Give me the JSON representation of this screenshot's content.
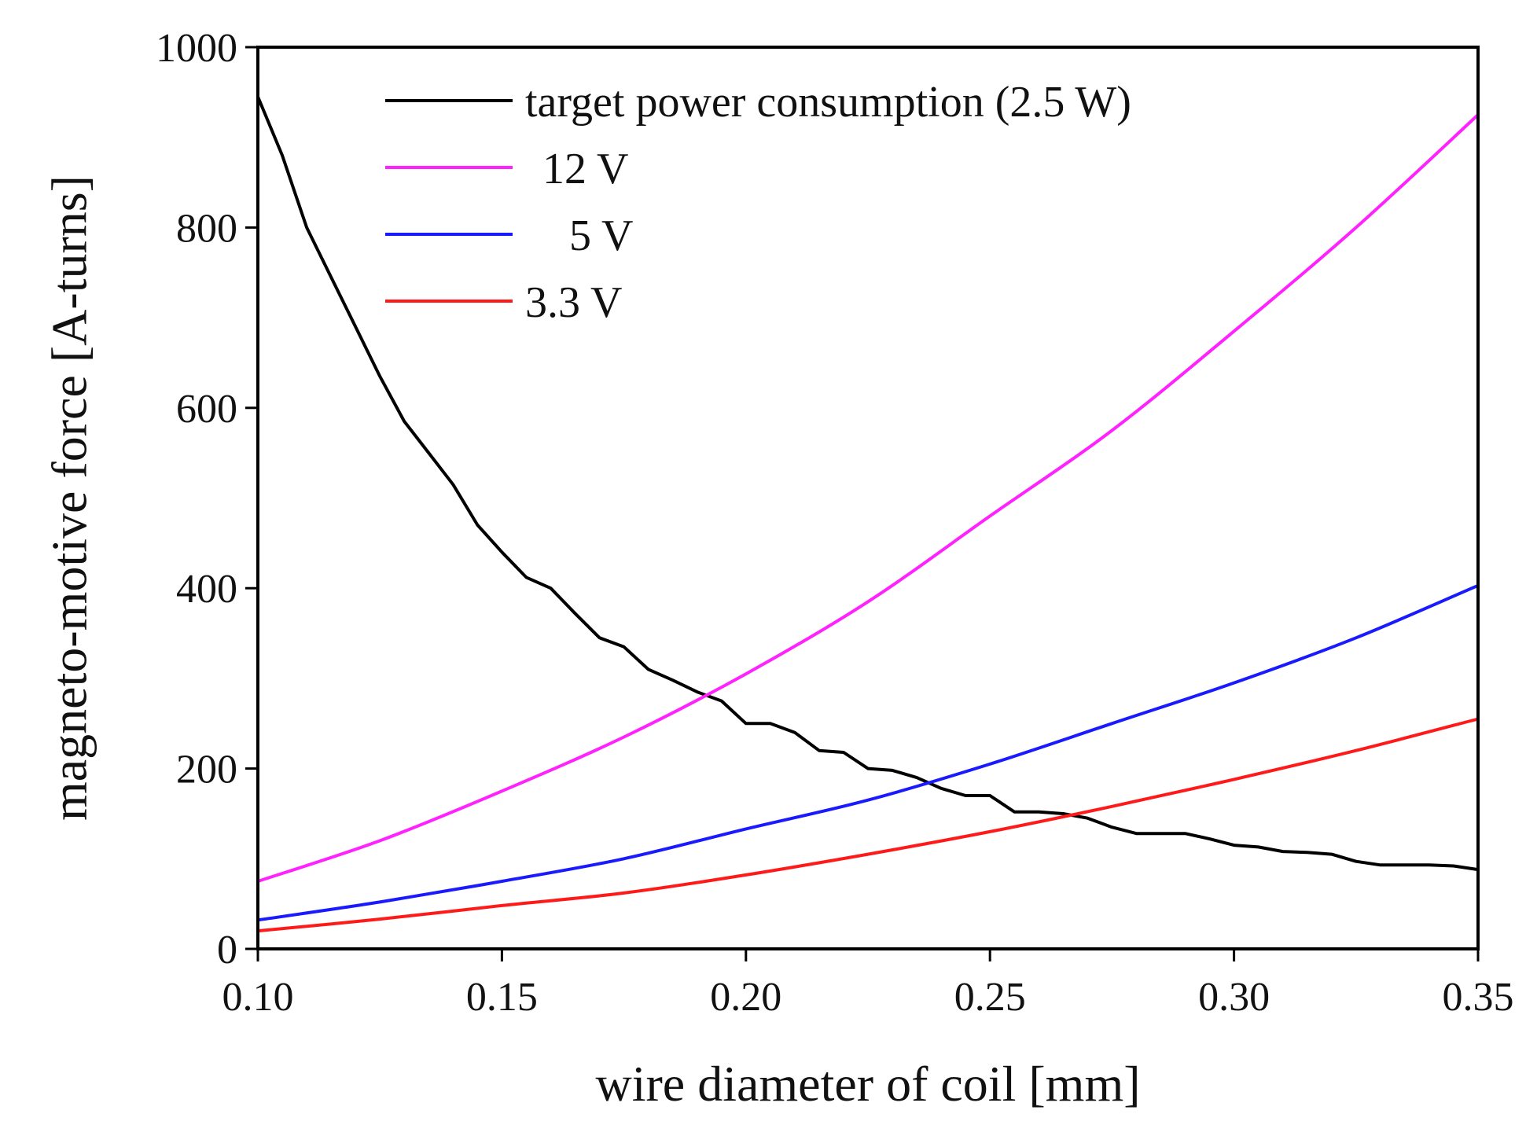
{
  "chart_data": {
    "type": "line",
    "title": "",
    "xlabel": "wire diameter of coil [mm]",
    "ylabel": "magneto-motive force [A-turns]",
    "xlim": [
      0.1,
      0.35
    ],
    "ylim": [
      0,
      1000
    ],
    "grid": false,
    "legend_position": "top-left",
    "x_ticks": [
      {
        "value": 0.1,
        "label": "0.10"
      },
      {
        "value": 0.15,
        "label": "0.15"
      },
      {
        "value": 0.2,
        "label": "0.20"
      },
      {
        "value": 0.25,
        "label": "0.25"
      },
      {
        "value": 0.3,
        "label": "0.30"
      },
      {
        "value": 0.35,
        "label": "0.35"
      }
    ],
    "y_ticks": [
      {
        "value": 0,
        "label": "0"
      },
      {
        "value": 200,
        "label": "200"
      },
      {
        "value": 400,
        "label": "400"
      },
      {
        "value": 600,
        "label": "600"
      },
      {
        "value": 800,
        "label": "800"
      },
      {
        "value": 1000,
        "label": "1000"
      }
    ],
    "series": [
      {
        "name": "target power consumption (2.5 W)",
        "color": "#000000",
        "x": [
          0.1,
          0.105,
          0.11,
          0.115,
          0.12,
          0.125,
          0.13,
          0.135,
          0.14,
          0.145,
          0.15,
          0.155,
          0.16,
          0.165,
          0.17,
          0.175,
          0.18,
          0.185,
          0.19,
          0.195,
          0.2,
          0.205,
          0.21,
          0.215,
          0.22,
          0.225,
          0.23,
          0.235,
          0.24,
          0.245,
          0.25,
          0.255,
          0.26,
          0.265,
          0.27,
          0.275,
          0.28,
          0.285,
          0.29,
          0.295,
          0.3,
          0.305,
          0.31,
          0.315,
          0.32,
          0.325,
          0.33,
          0.335,
          0.34,
          0.345,
          0.35
        ],
        "y": [
          945,
          880,
          800,
          745,
          690,
          635,
          585,
          550,
          515,
          470,
          440,
          412,
          400,
          372,
          345,
          335,
          310,
          298,
          285,
          275,
          250,
          250,
          240,
          220,
          218,
          200,
          198,
          190,
          178,
          170,
          170,
          152,
          152,
          150,
          145,
          135,
          128,
          128,
          128,
          122,
          115,
          113,
          108,
          107,
          105,
          97,
          93,
          93,
          93,
          92,
          88
        ]
      },
      {
        "name": "12 V",
        "color": "#ff22ff",
        "x": [
          0.1,
          0.125,
          0.15,
          0.175,
          0.2,
          0.225,
          0.25,
          0.275,
          0.3,
          0.325,
          0.35
        ],
        "y": [
          75,
          120,
          175,
          235,
          305,
          385,
          480,
          575,
          685,
          800,
          925
        ]
      },
      {
        "name": "5 V",
        "color": "#1a1aff",
        "x": [
          0.1,
          0.125,
          0.15,
          0.175,
          0.2,
          0.225,
          0.25,
          0.275,
          0.3,
          0.325,
          0.35
        ],
        "y": [
          32,
          52,
          75,
          100,
          133,
          165,
          205,
          250,
          295,
          345,
          403
        ]
      },
      {
        "name": "3.3 V",
        "color": "#ff1a1a",
        "x": [
          0.1,
          0.125,
          0.15,
          0.175,
          0.2,
          0.225,
          0.25,
          0.275,
          0.3,
          0.325,
          0.35
        ],
        "y": [
          20,
          33,
          48,
          62,
          82,
          105,
          130,
          158,
          188,
          220,
          255
        ]
      }
    ]
  }
}
